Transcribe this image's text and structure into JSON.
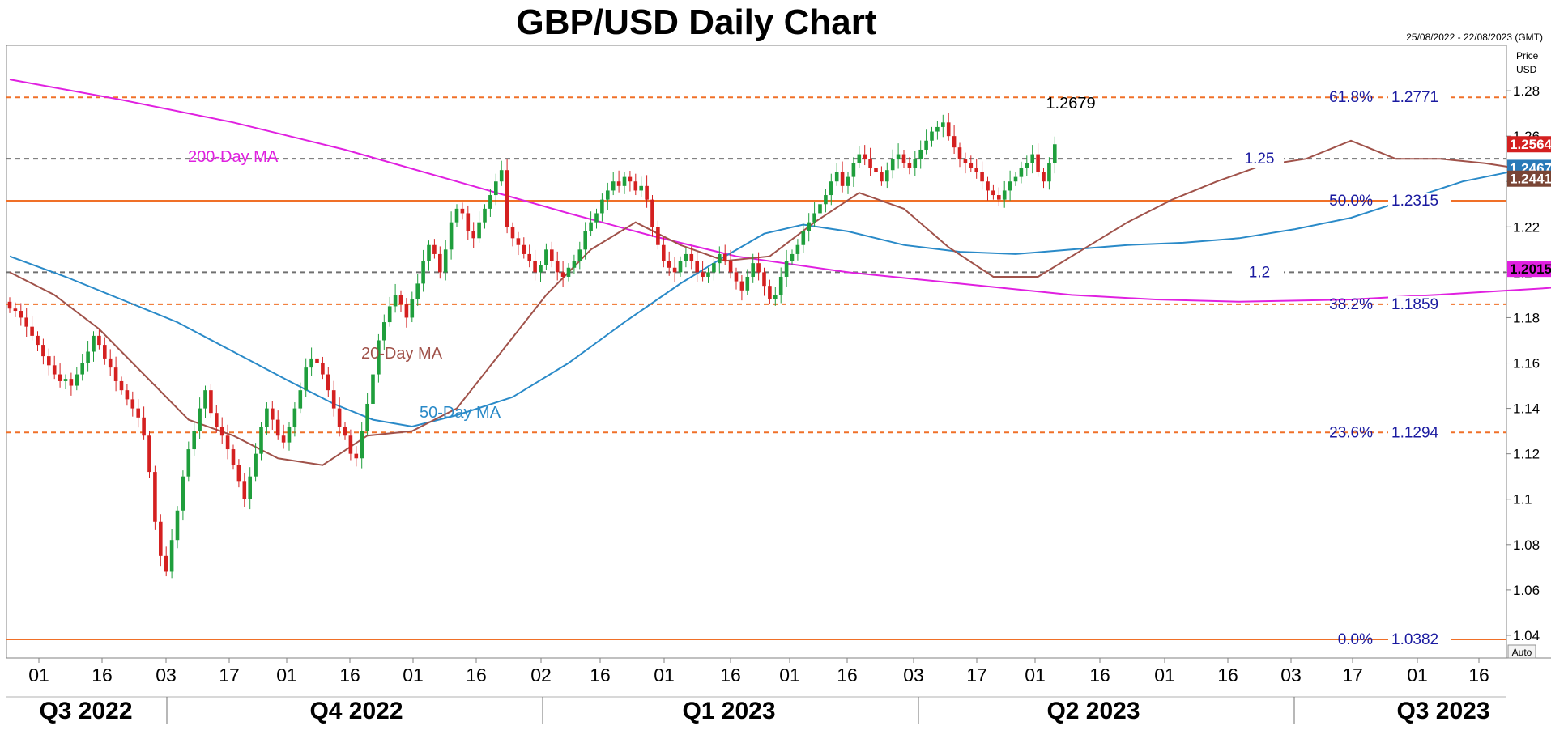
{
  "chart_data": {
    "type": "candlestick",
    "title": "GBP/USD Daily Chart",
    "date_range": "25/08/2022 - 22/08/2023 (GMT)",
    "price_label": "Price",
    "currency_label": "USD",
    "auto_label": "Auto",
    "ylim": [
      1.03,
      1.3
    ],
    "y_ticks": [
      1.04,
      1.06,
      1.08,
      1.1,
      1.12,
      1.14,
      1.16,
      1.18,
      1.2,
      1.22,
      1.24,
      1.26,
      1.28
    ],
    "y_tick_labels": [
      "1.04",
      "1.06",
      "1.08",
      "1.1",
      "1.12",
      "1.14",
      "1.16",
      "1.18",
      "1.2",
      "1.22",
      "1.24",
      "1.26",
      "1.28"
    ],
    "x_tick_labels": [
      "01",
      "16",
      "03",
      "17",
      "01",
      "16",
      "01",
      "16",
      "02",
      "16",
      "01",
      "16",
      "01",
      "16",
      "03",
      "17",
      "01",
      "16",
      "01",
      "16",
      "03",
      "17",
      "01",
      "16"
    ],
    "quarters": [
      "Q3 2022",
      "Q4 2022",
      "Q1 2023",
      "Q2 2023",
      "Q3 2023"
    ],
    "fib_levels": [
      {
        "pct": "61.8%",
        "value": 1.2771,
        "label": "1.2771",
        "style": "dashed"
      },
      {
        "pct": "50.0%",
        "value": 1.2315,
        "label": "1.2315",
        "style": "solid"
      },
      {
        "pct": "38.2%",
        "value": 1.1859,
        "label": "1.1859",
        "style": "dashed"
      },
      {
        "pct": "23.6%",
        "value": 1.1294,
        "label": "1.1294",
        "style": "dashed"
      },
      {
        "pct": "0.0%",
        "value": 1.0382,
        "label": "1.0382",
        "style": "solid"
      }
    ],
    "round_levels": [
      {
        "value": 1.25,
        "label": "1.25"
      },
      {
        "value": 1.2,
        "label": "1.2"
      }
    ],
    "peak_annotation": {
      "value": 1.2679,
      "label": "1.2679"
    },
    "ma_labels": {
      "ma200": "200-Day MA",
      "ma20": "20-Day MA",
      "ma50": "50-Day MA"
    },
    "price_badges": [
      {
        "value": 1.2564,
        "label": "1.2564",
        "color": "#d42020"
      },
      {
        "value": 1.2467,
        "label": "1.2467",
        "color": "#2a7ab8"
      },
      {
        "value": 1.2441,
        "label": "1.2441",
        "color": "#7a4535"
      },
      {
        "value": 1.2015,
        "label": "1.2015",
        "color": "#e020e0"
      }
    ],
    "colors": {
      "up": "#1f9e3c",
      "down": "#d42020",
      "ma20": "#a0524a",
      "ma50": "#2a8ac8",
      "ma200": "#e020e0",
      "fib": "#f07028",
      "round": "#707070",
      "label_blue": "#1a1aa0"
    },
    "ma200_path": [
      [
        0,
        1.285
      ],
      [
        20,
        1.276
      ],
      [
        40,
        1.266
      ],
      [
        60,
        1.254
      ],
      [
        80,
        1.24
      ],
      [
        100,
        1.226
      ],
      [
        115,
        1.216
      ],
      [
        130,
        1.207
      ],
      [
        150,
        1.2
      ],
      [
        170,
        1.195
      ],
      [
        190,
        1.19
      ],
      [
        205,
        1.188
      ],
      [
        220,
        1.187
      ],
      [
        240,
        1.188
      ],
      [
        255,
        1.19
      ],
      [
        275,
        1.193
      ],
      [
        295,
        1.197
      ],
      [
        310,
        1.2015
      ]
    ],
    "ma50_path": [
      [
        0,
        1.207
      ],
      [
        10,
        1.198
      ],
      [
        20,
        1.188
      ],
      [
        30,
        1.178
      ],
      [
        40,
        1.165
      ],
      [
        50,
        1.152
      ],
      [
        58,
        1.142
      ],
      [
        65,
        1.135
      ],
      [
        72,
        1.132
      ],
      [
        80,
        1.137
      ],
      [
        90,
        1.145
      ],
      [
        100,
        1.16
      ],
      [
        110,
        1.178
      ],
      [
        120,
        1.195
      ],
      [
        128,
        1.207
      ],
      [
        135,
        1.217
      ],
      [
        142,
        1.221
      ],
      [
        150,
        1.218
      ],
      [
        160,
        1.212
      ],
      [
        170,
        1.209
      ],
      [
        180,
        1.208
      ],
      [
        190,
        1.21
      ],
      [
        200,
        1.212
      ],
      [
        210,
        1.213
      ],
      [
        220,
        1.215
      ],
      [
        230,
        1.219
      ],
      [
        240,
        1.224
      ],
      [
        250,
        1.232
      ],
      [
        260,
        1.24
      ],
      [
        270,
        1.245
      ],
      [
        280,
        1.247
      ],
      [
        295,
        1.2467
      ]
    ],
    "ma20_path": [
      [
        0,
        1.2
      ],
      [
        8,
        1.19
      ],
      [
        16,
        1.175
      ],
      [
        24,
        1.155
      ],
      [
        32,
        1.135
      ],
      [
        40,
        1.128
      ],
      [
        48,
        1.118
      ],
      [
        56,
        1.115
      ],
      [
        64,
        1.128
      ],
      [
        72,
        1.13
      ],
      [
        80,
        1.14
      ],
      [
        88,
        1.165
      ],
      [
        96,
        1.19
      ],
      [
        104,
        1.21
      ],
      [
        112,
        1.222
      ],
      [
        120,
        1.212
      ],
      [
        128,
        1.205
      ],
      [
        136,
        1.207
      ],
      [
        144,
        1.222
      ],
      [
        152,
        1.235
      ],
      [
        160,
        1.228
      ],
      [
        168,
        1.211
      ],
      [
        176,
        1.198
      ],
      [
        184,
        1.198
      ],
      [
        192,
        1.21
      ],
      [
        200,
        1.222
      ],
      [
        208,
        1.232
      ],
      [
        216,
        1.24
      ],
      [
        224,
        1.247
      ],
      [
        232,
        1.25
      ],
      [
        240,
        1.258
      ],
      [
        248,
        1.25
      ],
      [
        256,
        1.25
      ],
      [
        264,
        1.248
      ],
      [
        272,
        1.245
      ],
      [
        280,
        1.242
      ],
      [
        290,
        1.2441
      ]
    ],
    "candles_close": [
      1.184,
      1.183,
      1.18,
      1.176,
      1.172,
      1.168,
      1.163,
      1.159,
      1.155,
      1.152,
      1.153,
      1.15,
      1.155,
      1.16,
      1.165,
      1.172,
      1.168,
      1.162,
      1.158,
      1.152,
      1.148,
      1.144,
      1.14,
      1.136,
      1.128,
      1.112,
      1.09,
      1.075,
      1.068,
      1.082,
      1.095,
      1.11,
      1.122,
      1.13,
      1.14,
      1.148,
      1.138,
      1.132,
      1.128,
      1.122,
      1.115,
      1.108,
      1.1,
      1.11,
      1.12,
      1.132,
      1.14,
      1.135,
      1.128,
      1.125,
      1.132,
      1.14,
      1.148,
      1.158,
      1.162,
      1.16,
      1.155,
      1.148,
      1.14,
      1.132,
      1.128,
      1.12,
      1.118,
      1.13,
      1.142,
      1.155,
      1.17,
      1.178,
      1.185,
      1.19,
      1.186,
      1.18,
      1.188,
      1.195,
      1.205,
      1.212,
      1.208,
      1.2,
      1.21,
      1.222,
      1.228,
      1.226,
      1.218,
      1.215,
      1.222,
      1.228,
      1.234,
      1.24,
      1.245,
      1.22,
      1.215,
      1.212,
      1.208,
      1.205,
      1.2,
      1.203,
      1.21,
      1.205,
      1.2,
      1.198,
      1.202,
      1.205,
      1.21,
      1.218,
      1.222,
      1.226,
      1.232,
      1.236,
      1.24,
      1.238,
      1.242,
      1.24,
      1.236,
      1.238,
      1.232,
      1.22,
      1.212,
      1.205,
      1.202,
      1.2,
      1.205,
      1.208,
      1.205,
      1.2,
      1.198,
      1.2,
      1.204,
      1.208,
      1.205,
      1.2,
      1.196,
      1.192,
      1.198,
      1.204,
      1.2,
      1.194,
      1.188,
      1.19,
      1.198,
      1.205,
      1.208,
      1.212,
      1.218,
      1.222,
      1.226,
      1.23,
      1.234,
      1.24,
      1.244,
      1.238,
      1.242,
      1.248,
      1.252,
      1.25,
      1.246,
      1.244,
      1.24,
      1.245,
      1.25,
      1.252,
      1.248,
      1.246,
      1.25,
      1.254,
      1.258,
      1.262,
      1.264,
      1.266,
      1.26,
      1.255,
      1.25,
      1.248,
      1.246,
      1.244,
      1.24,
      1.236,
      1.234,
      1.232,
      1.236,
      1.24,
      1.242,
      1.246,
      1.248,
      1.252,
      1.244,
      1.24,
      1.248,
      1.2564
    ]
  }
}
